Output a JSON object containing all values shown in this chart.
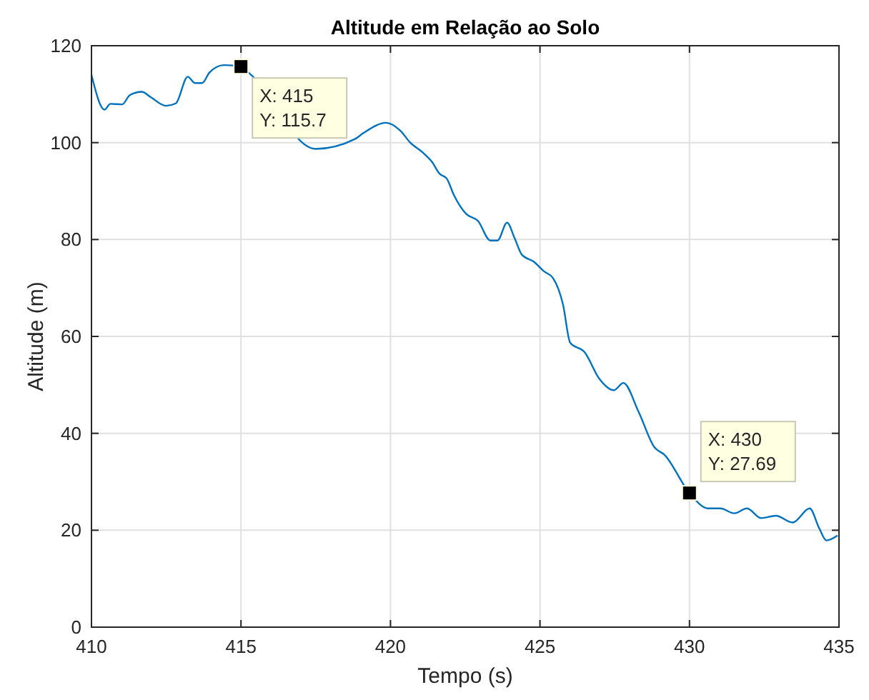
{
  "chart_data": {
    "type": "line",
    "title": "Altitude em Relação ao Solo",
    "xlabel": "Tempo (s)",
    "ylabel": "Altitude (m)",
    "xlim": [
      410,
      435
    ],
    "xticks": [
      410,
      415,
      420,
      425,
      430,
      435
    ],
    "ylim": [
      0,
      120
    ],
    "yticks": [
      0,
      20,
      40,
      60,
      80,
      100,
      120
    ],
    "grid": true,
    "marker": "none",
    "line_style": "solid",
    "x": [
      410,
      410.44,
      410.63,
      411.03,
      411.28,
      411.68,
      412,
      412.49,
      412.82,
      413.22,
      413.46,
      413.7,
      413.95,
      414.43,
      415,
      415.3,
      416.3,
      417.5,
      418.23,
      418.8,
      419.1,
      419.85,
      420.34,
      420.66,
      421.07,
      421.39,
      421.64,
      421.88,
      422.12,
      422.53,
      422.93,
      423.34,
      423.58,
      423.9,
      424.15,
      424.39,
      424.8,
      425.12,
      425.44,
      425.77,
      426.01,
      426.5,
      426.98,
      427.47,
      427.79,
      428.3,
      428.83,
      429.16,
      430,
      430.62,
      431.03,
      431.5,
      431.92,
      432.4,
      432.89,
      433.45,
      434.02,
      434.34,
      434.58,
      434.95
    ],
    "series": [
      {
        "color": "#0072bd",
        "values": [
          114,
          106.8,
          108,
          107.9,
          109.8,
          110.5,
          109.3,
          107.6,
          108.1,
          113.6,
          112.3,
          112.3,
          114.5,
          116,
          115.7,
          114.2,
          null,
          98.7,
          null,
          100.7,
          102,
          104.1,
          102.4,
          100,
          98,
          96,
          93.6,
          92.6,
          89.2,
          85.3,
          83.8,
          79.8,
          79.8,
          83.5,
          80.3,
          76.9,
          75.4,
          73.5,
          72,
          66.6,
          58.7,
          56.7,
          51.3,
          48.9,
          50.4,
          44.4,
          37.1,
          35.6,
          27.69,
          24.5,
          24.5,
          23.5,
          24.5,
          22.5,
          23,
          21.6,
          24.5,
          20.4,
          17.9,
          18.9
        ]
      }
    ],
    "annotations": [
      {
        "text": "X: 415\nY: 115.7",
        "x": 415,
        "y": 115.7
      },
      {
        "text": "X: 430\nY: 27.69",
        "x": 430,
        "y": 27.69
      }
    ]
  }
}
